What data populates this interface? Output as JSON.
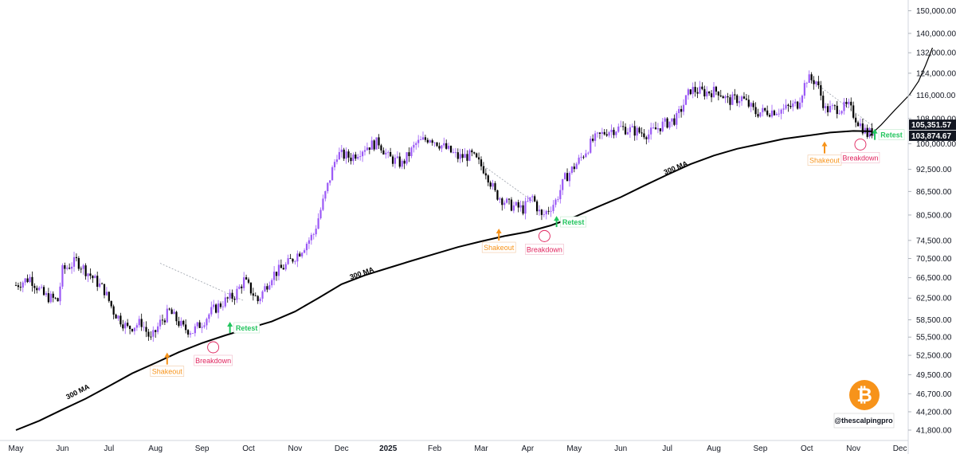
{
  "chart_data": {
    "type": "candlestick",
    "x_labels": [
      "May",
      "Jun",
      "Jul",
      "Aug",
      "Sep",
      "Oct",
      "Nov",
      "Dec",
      "2025",
      "Feb",
      "Mar",
      "Apr",
      "May",
      "Jun",
      "Jul",
      "Aug",
      "Sep",
      "Oct",
      "Nov",
      "Dec"
    ],
    "y_ticks": [
      "150,000.00",
      "140,000.00",
      "132,000.00",
      "124,000.00",
      "116,000.00",
      "108,000.00",
      "100,000.00",
      "92,500.00",
      "86,500.00",
      "80,500.00",
      "74,500.00",
      "70,500.00",
      "66,500.00",
      "62,500.00",
      "58,500.00",
      "55,500.00",
      "52,500.00",
      "49,500.00",
      "46,700.00",
      "44,200.00",
      "41,800.00"
    ],
    "y_scale": "log",
    "ylim": [
      40500,
      155000
    ],
    "price_path": [
      [
        0,
        65000
      ],
      [
        0.3,
        66500
      ],
      [
        0.6,
        63000
      ],
      [
        0.9,
        62000
      ],
      [
        1.0,
        68000
      ],
      [
        1.3,
        70000
      ],
      [
        1.6,
        67000
      ],
      [
        1.9,
        64000
      ],
      [
        2.1,
        60000
      ],
      [
        2.4,
        57000
      ],
      [
        2.7,
        58000
      ],
      [
        2.9,
        55000
      ],
      [
        3.1,
        58000
      ],
      [
        3.3,
        60000
      ],
      [
        3.6,
        57000
      ],
      [
        3.8,
        56500
      ],
      [
        4.0,
        58000
      ],
      [
        4.2,
        60000
      ],
      [
        4.5,
        62000
      ],
      [
        4.7,
        63000
      ],
      [
        4.9,
        66000
      ],
      [
        5.2,
        62000
      ],
      [
        5.5,
        67000
      ],
      [
        5.8,
        69000
      ],
      [
        6.1,
        72000
      ],
      [
        6.4,
        76000
      ],
      [
        6.7,
        88000
      ],
      [
        6.9,
        97000
      ],
      [
        7.2,
        96000
      ],
      [
        7.5,
        99000
      ],
      [
        7.8,
        100500
      ],
      [
        8.0,
        96000
      ],
      [
        8.3,
        94000
      ],
      [
        8.6,
        100000
      ],
      [
        8.9,
        102000
      ],
      [
        9.2,
        99000
      ],
      [
        9.5,
        96000
      ],
      [
        9.8,
        96500
      ],
      [
        10.1,
        92000
      ],
      [
        10.3,
        86000
      ],
      [
        10.6,
        83000
      ],
      [
        10.9,
        82000
      ],
      [
        11.1,
        85000
      ],
      [
        11.3,
        80000
      ],
      [
        11.6,
        84000
      ],
      [
        11.8,
        90000
      ],
      [
        12.1,
        95000
      ],
      [
        12.4,
        101000
      ],
      [
        12.7,
        104000
      ],
      [
        13.0,
        105000
      ],
      [
        13.3,
        104000
      ],
      [
        13.6,
        103000
      ],
      [
        13.9,
        106000
      ],
      [
        14.2,
        108000
      ],
      [
        14.5,
        118000
      ],
      [
        14.8,
        117000
      ],
      [
        15.1,
        117500
      ],
      [
        15.3,
        114000
      ],
      [
        15.6,
        115000
      ],
      [
        15.9,
        110000
      ],
      [
        16.2,
        110500
      ],
      [
        16.5,
        111000
      ],
      [
        16.8,
        113000
      ],
      [
        17.0,
        122000
      ],
      [
        17.2,
        121000
      ],
      [
        17.4,
        111000
      ],
      [
        17.7,
        111500
      ],
      [
        17.9,
        112000
      ],
      [
        18.1,
        107000
      ],
      [
        18.3,
        103000
      ],
      [
        18.5,
        104500
      ]
    ],
    "series": [
      {
        "name": "300 MA",
        "values": [
          [
            0,
            41800
          ],
          [
            0.5,
            43000
          ],
          [
            1,
            44500
          ],
          [
            1.5,
            46000
          ],
          [
            2,
            47800
          ],
          [
            2.5,
            49700
          ],
          [
            3,
            51300
          ],
          [
            3.5,
            53000
          ],
          [
            4,
            54500
          ],
          [
            4.5,
            55800
          ],
          [
            5,
            57000
          ],
          [
            5.5,
            58200
          ],
          [
            6,
            60000
          ],
          [
            6.5,
            62500
          ],
          [
            7,
            65200
          ],
          [
            7.5,
            67000
          ],
          [
            8,
            68500
          ],
          [
            8.5,
            70000
          ],
          [
            9,
            71500
          ],
          [
            9.5,
            73000
          ],
          [
            10,
            74300
          ],
          [
            10.5,
            75500
          ],
          [
            11,
            76500
          ],
          [
            11.5,
            78000
          ],
          [
            12,
            80000
          ],
          [
            12.5,
            82500
          ],
          [
            13,
            85000
          ],
          [
            13.5,
            88000
          ],
          [
            14,
            91000
          ],
          [
            14.5,
            94000
          ],
          [
            15,
            96500
          ],
          [
            15.5,
            98500
          ],
          [
            16,
            100000
          ],
          [
            16.5,
            101500
          ],
          [
            17,
            102500
          ],
          [
            17.5,
            103500
          ],
          [
            18,
            104000
          ],
          [
            18.4,
            103874
          ]
        ]
      }
    ],
    "projection_path": [
      [
        18.35,
        102500
      ],
      [
        18.6,
        106000
      ],
      [
        18.9,
        111000
      ],
      [
        19.2,
        116000
      ],
      [
        19.4,
        121000
      ],
      [
        19.55,
        127000
      ],
      [
        19.7,
        134000
      ]
    ],
    "price_tags": [
      {
        "value": 105351.57,
        "label": "105,351.57"
      },
      {
        "value": 103874.67,
        "label": "103,874.67"
      }
    ],
    "annotations": [
      {
        "type": "shakeout",
        "x": 3.25,
        "y": 52300,
        "text": "Shakeout"
      },
      {
        "type": "breakdown",
        "x": 4.24,
        "y": 53800,
        "text": "Breakdown"
      },
      {
        "type": "retest",
        "x": 4.6,
        "y": 56200,
        "text": "Retest"
      },
      {
        "type": "shakeout",
        "x": 10.38,
        "y": 76300,
        "text": "Shakeout"
      },
      {
        "type": "breakdown",
        "x": 11.36,
        "y": 75500,
        "text": "Breakdown"
      },
      {
        "type": "retest",
        "x": 11.62,
        "y": 77600,
        "text": "Retest"
      },
      {
        "type": "shakeout",
        "x": 17.38,
        "y": 99500,
        "text": "Shakeout"
      },
      {
        "type": "breakdown",
        "x": 18.15,
        "y": 99800,
        "text": "Breakdown"
      },
      {
        "type": "retest",
        "x": 18.46,
        "y": 101200,
        "text": "Retest"
      }
    ],
    "ma_labels": [
      {
        "x": 1.35,
        "y": 46000,
        "text": "300 MA"
      },
      {
        "x": 7.45,
        "y": 66000,
        "text": "300 MA"
      },
      {
        "x": 14.2,
        "y": 91000,
        "text": "300 MA"
      }
    ],
    "trendlines": [
      [
        [
          3.1,
          69500
        ],
        [
          4.9,
          62000
        ]
      ],
      [
        [
          10.0,
          94000
        ],
        [
          11.1,
          84000
        ]
      ],
      [
        [
          17.05,
          122000
        ],
        [
          18.4,
          105800
        ]
      ]
    ],
    "colors": {
      "up": "#9b59f6",
      "down": "#000000",
      "ma": "#000000",
      "accent_orange": "#f7931a",
      "accent_red": "#e0245e",
      "accent_green": "#22c55e"
    }
  },
  "watermark": {
    "handle": "@thescalpingpro",
    "logo": "bitcoin-logo"
  }
}
